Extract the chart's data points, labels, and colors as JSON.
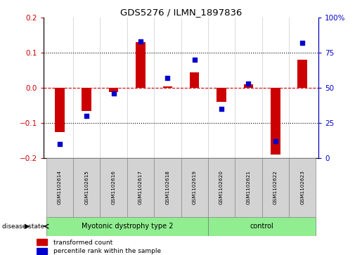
{
  "title": "GDS5276 / ILMN_1897836",
  "categories": [
    "GSM1102614",
    "GSM1102615",
    "GSM1102616",
    "GSM1102617",
    "GSM1102618",
    "GSM1102619",
    "GSM1102620",
    "GSM1102621",
    "GSM1102622",
    "GSM1102623"
  ],
  "red_values": [
    -0.125,
    -0.065,
    -0.012,
    0.13,
    0.005,
    0.045,
    -0.04,
    0.01,
    -0.19,
    0.08
  ],
  "blue_values": [
    10,
    30,
    46,
    83,
    57,
    70,
    35,
    53,
    12,
    82
  ],
  "groups": [
    {
      "label": "Myotonic dystrophy type 2",
      "start": 0,
      "end": 5
    },
    {
      "label": "control",
      "start": 6,
      "end": 9
    }
  ],
  "ylim_left": [
    -0.2,
    0.2
  ],
  "ylim_right": [
    0,
    100
  ],
  "left_axis_color": "#cc0000",
  "right_axis_color": "#0000cc",
  "bar_color": "#cc0000",
  "dot_color": "#0000cc",
  "background_color": "#ffffff",
  "group_bg_color": "#90ee90",
  "tick_label_bg": "#d3d3d3",
  "legend_red_label": "transformed count",
  "legend_blue_label": "percentile rank within the sample",
  "disease_state_label": "disease state",
  "dotted_line_color": "#000000",
  "zero_line_color": "#cc0000",
  "right_ytick_labels": [
    "100%",
    "75",
    "50",
    "25",
    "0"
  ]
}
